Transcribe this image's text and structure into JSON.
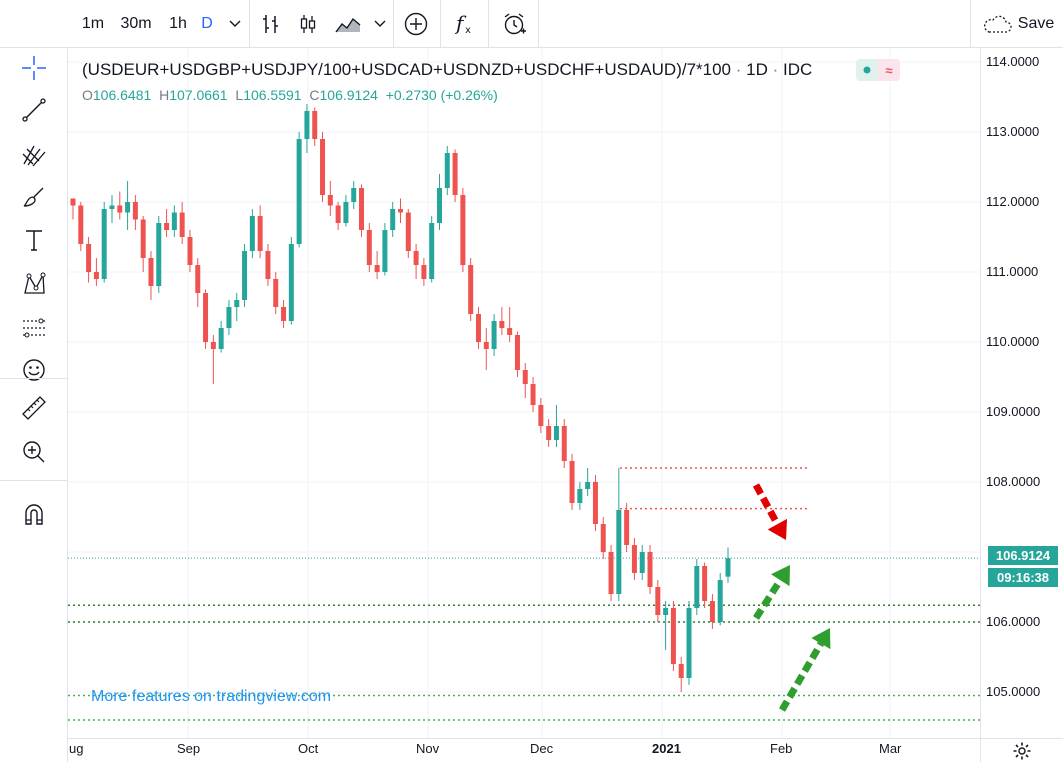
{
  "toolbar": {
    "intervals": [
      "1m",
      "30m",
      "1h",
      "D"
    ],
    "active_interval": "D",
    "save_label": "Save"
  },
  "legend": {
    "symbol": "(USDEUR+USDGBP+USDJPY/100+USDCAD+USDNZD+USDCHF+USDAUD)/7*100",
    "interval": "1D",
    "source": "IDC",
    "open_key": "O",
    "open": "106.6481",
    "high_key": "H",
    "high": "107.0661",
    "low_key": "L",
    "low": "106.5591",
    "close_key": "C",
    "close": "106.9124",
    "change": "+0.2730 (+0.26%)"
  },
  "watermark": "More features on tradingview.com",
  "price_axis": [
    "114.0000",
    "113.0000",
    "112.0000",
    "111.0000",
    "110.0000",
    "109.0000",
    "108.0000",
    "106.0000",
    "105.0000"
  ],
  "last_price_tag": "106.9124",
  "countdown_tag": "09:16:38",
  "time_axis": [
    "ug",
    "Sep",
    "Oct",
    "Nov",
    "Dec",
    "2021",
    "Feb",
    "Mar"
  ],
  "colors": {
    "up": "#26a69a",
    "down": "#ef5350",
    "accent": "#2962ff",
    "watermark": "#2196f3"
  },
  "icons": {
    "left_tools": [
      "crosshair-icon",
      "trend-line-icon",
      "pitchfork-icon",
      "brush-icon",
      "text-icon",
      "pattern-icon",
      "forecast-icon",
      "emoji-icon",
      "ruler-icon",
      "zoom-in-icon",
      "magnet-icon"
    ]
  },
  "chart_data": {
    "type": "candlestick",
    "ylim": [
      104.6,
      114.1
    ],
    "resistance_levels": [
      108.2,
      107.62
    ],
    "support_levels": [
      106.24,
      106.0,
      104.95,
      104.6
    ],
    "last_price": 106.9124,
    "candles": [
      [
        112.05,
        112.05,
        111.75,
        111.95
      ],
      [
        111.95,
        112.0,
        111.3,
        111.4
      ],
      [
        111.4,
        111.5,
        110.85,
        111.0
      ],
      [
        111.0,
        111.2,
        110.8,
        110.9
      ],
      [
        110.9,
        112.0,
        110.85,
        111.9
      ],
      [
        111.9,
        112.1,
        111.7,
        111.95
      ],
      [
        111.95,
        112.15,
        111.75,
        111.85
      ],
      [
        111.85,
        112.3,
        111.6,
        112.0
      ],
      [
        112.0,
        112.1,
        111.6,
        111.75
      ],
      [
        111.75,
        111.8,
        111.0,
        111.2
      ],
      [
        111.2,
        111.3,
        110.6,
        110.8
      ],
      [
        110.8,
        111.8,
        110.7,
        111.7
      ],
      [
        111.7,
        111.9,
        111.5,
        111.6
      ],
      [
        111.6,
        111.95,
        111.5,
        111.85
      ],
      [
        111.85,
        112.0,
        111.4,
        111.5
      ],
      [
        111.5,
        111.6,
        111.0,
        111.1
      ],
      [
        111.1,
        111.2,
        110.5,
        110.7
      ],
      [
        110.7,
        110.75,
        109.9,
        110.0
      ],
      [
        110.0,
        110.1,
        109.4,
        109.9
      ],
      [
        109.9,
        110.3,
        109.85,
        110.2
      ],
      [
        110.2,
        110.6,
        110.1,
        110.5
      ],
      [
        110.5,
        110.7,
        110.3,
        110.6
      ],
      [
        110.6,
        111.4,
        110.5,
        111.3
      ],
      [
        111.3,
        111.9,
        111.2,
        111.8
      ],
      [
        111.8,
        111.95,
        111.2,
        111.3
      ],
      [
        111.3,
        111.4,
        110.8,
        110.9
      ],
      [
        110.9,
        111.0,
        110.4,
        110.5
      ],
      [
        110.5,
        110.6,
        110.2,
        110.3
      ],
      [
        110.3,
        111.5,
        110.25,
        111.4
      ],
      [
        111.4,
        113.0,
        111.35,
        112.9
      ],
      [
        112.9,
        113.4,
        112.7,
        113.3
      ],
      [
        113.3,
        113.35,
        112.8,
        112.9
      ],
      [
        112.9,
        113.0,
        112.0,
        112.1
      ],
      [
        112.1,
        112.3,
        111.8,
        111.95
      ],
      [
        111.95,
        112.0,
        111.6,
        111.7
      ],
      [
        111.7,
        112.1,
        111.65,
        112.0
      ],
      [
        112.0,
        112.3,
        111.9,
        112.2
      ],
      [
        112.2,
        112.25,
        111.5,
        111.6
      ],
      [
        111.6,
        111.7,
        111.0,
        111.1
      ],
      [
        111.1,
        111.3,
        110.9,
        111.0
      ],
      [
        111.0,
        111.7,
        110.95,
        111.6
      ],
      [
        111.6,
        112.0,
        111.5,
        111.9
      ],
      [
        111.9,
        112.05,
        111.7,
        111.85
      ],
      [
        111.85,
        111.9,
        111.2,
        111.3
      ],
      [
        111.3,
        111.4,
        110.9,
        111.1
      ],
      [
        111.1,
        111.2,
        110.8,
        110.9
      ],
      [
        110.9,
        111.8,
        110.85,
        111.7
      ],
      [
        111.7,
        112.4,
        111.6,
        112.2
      ],
      [
        112.2,
        112.8,
        112.1,
        112.7
      ],
      [
        112.7,
        112.75,
        112.0,
        112.1
      ],
      [
        112.1,
        112.2,
        111.0,
        111.1
      ],
      [
        111.1,
        111.2,
        110.3,
        110.4
      ],
      [
        110.4,
        110.5,
        109.9,
        110.0
      ],
      [
        110.0,
        110.2,
        109.6,
        109.9
      ],
      [
        109.9,
        110.4,
        109.8,
        110.3
      ],
      [
        110.3,
        110.5,
        110.1,
        110.2
      ],
      [
        110.2,
        110.5,
        110.0,
        110.1
      ],
      [
        110.1,
        110.15,
        109.5,
        109.6
      ],
      [
        109.6,
        109.7,
        109.2,
        109.4
      ],
      [
        109.4,
        109.5,
        109.0,
        109.1
      ],
      [
        109.1,
        109.2,
        108.7,
        108.8
      ],
      [
        108.8,
        108.9,
        108.5,
        108.6
      ],
      [
        108.6,
        109.1,
        108.5,
        108.8
      ],
      [
        108.8,
        108.9,
        108.2,
        108.3
      ],
      [
        108.3,
        108.4,
        107.6,
        107.7
      ],
      [
        107.7,
        108.0,
        107.6,
        107.9
      ],
      [
        107.9,
        108.2,
        107.8,
        108.0
      ],
      [
        108.0,
        108.1,
        107.3,
        107.4
      ],
      [
        107.4,
        107.5,
        106.9,
        107.0
      ],
      [
        107.0,
        107.1,
        106.3,
        106.4
      ],
      [
        106.4,
        108.2,
        106.3,
        107.6
      ],
      [
        107.6,
        107.7,
        107.0,
        107.1
      ],
      [
        107.1,
        107.2,
        106.6,
        106.7
      ],
      [
        106.7,
        107.1,
        106.6,
        107.0
      ],
      [
        107.0,
        107.1,
        106.4,
        106.5
      ],
      [
        106.5,
        106.6,
        106.0,
        106.1
      ],
      [
        106.1,
        106.3,
        105.6,
        106.2
      ],
      [
        106.2,
        106.3,
        105.3,
        105.4
      ],
      [
        105.4,
        105.5,
        105.0,
        105.2
      ],
      [
        105.2,
        106.3,
        105.1,
        106.2
      ],
      [
        106.2,
        106.9,
        106.1,
        106.8
      ],
      [
        106.8,
        106.85,
        106.2,
        106.3
      ],
      [
        106.3,
        106.4,
        105.9,
        106.0
      ],
      [
        106.0,
        106.7,
        105.95,
        106.6
      ],
      [
        106.6481,
        107.0661,
        106.5591,
        106.9124
      ]
    ]
  }
}
